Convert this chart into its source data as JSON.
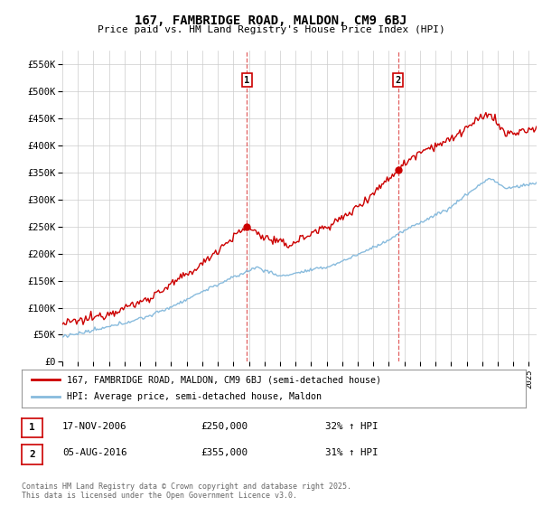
{
  "title": "167, FAMBRIDGE ROAD, MALDON, CM9 6BJ",
  "subtitle": "Price paid vs. HM Land Registry's House Price Index (HPI)",
  "ylabel_ticks": [
    "£0",
    "£50K",
    "£100K",
    "£150K",
    "£200K",
    "£250K",
    "£300K",
    "£350K",
    "£400K",
    "£450K",
    "£500K",
    "£550K"
  ],
  "ytick_values": [
    0,
    50000,
    100000,
    150000,
    200000,
    250000,
    300000,
    350000,
    400000,
    450000,
    500000,
    550000
  ],
  "ylim": [
    0,
    575000
  ],
  "xlim_start": 1995.0,
  "xlim_end": 2025.5,
  "red_color": "#cc0000",
  "blue_color": "#88bbdd",
  "marker1_x": 2006.88,
  "marker1_y": 250000,
  "marker2_x": 2016.59,
  "marker2_y": 355000,
  "legend_label1": "167, FAMBRIDGE ROAD, MALDON, CM9 6BJ (semi-detached house)",
  "legend_label2": "HPI: Average price, semi-detached house, Maldon",
  "annot1_num": "1",
  "annot1_date": "17-NOV-2006",
  "annot1_price": "£250,000",
  "annot1_hpi": "32% ↑ HPI",
  "annot2_num": "2",
  "annot2_date": "05-AUG-2016",
  "annot2_price": "£355,000",
  "annot2_hpi": "31% ↑ HPI",
  "footer": "Contains HM Land Registry data © Crown copyright and database right 2025.\nThis data is licensed under the Open Government Licence v3.0.",
  "background_color": "#ffffff",
  "grid_color": "#cccccc"
}
